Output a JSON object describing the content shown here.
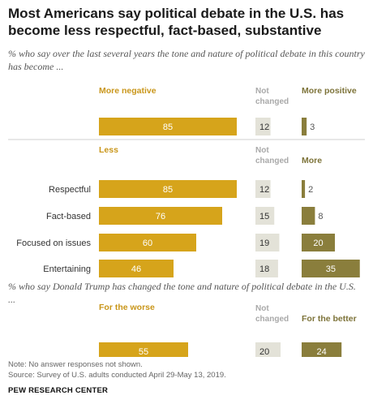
{
  "title": "Most Americans say political debate in the U.S. has become less respectful, fact-based, substantive",
  "subtitle1": "% who say over the last several years the tone and nature of political debate in this country has become ...",
  "subtitle2": "% who say Donald Trump has changed the tone and nature of political debate in the U.S. ...",
  "note": "Note: No answer responses not shown.",
  "source": "Source: Survey of U.S. adults conducted April 29-May 13, 2019.",
  "footer": "PEW RESEARCH CENTER",
  "colors": {
    "negative": "#d6a41b",
    "neutral": "#e3e2d8",
    "positive": "#8a7e3c",
    "label_negative": "#c9961a",
    "label_neutral": "#a9a9a9",
    "label_positive": "#7d7339"
  },
  "chart_data": [
    {
      "type": "bar",
      "orientation": "horizontal-diverging",
      "column_headers": [
        "More negative",
        "Not changed",
        "More positive"
      ],
      "categories": [
        ""
      ],
      "series": [
        {
          "name": "More negative",
          "values": [
            85
          ]
        },
        {
          "name": "Not changed",
          "values": [
            12
          ]
        },
        {
          "name": "More positive",
          "values": [
            3
          ]
        }
      ]
    },
    {
      "type": "bar",
      "orientation": "horizontal-diverging",
      "column_headers": [
        "Less",
        "Not changed",
        "More"
      ],
      "categories": [
        "Respectful",
        "Fact-based",
        "Focused on issues",
        "Entertaining"
      ],
      "series": [
        {
          "name": "Less",
          "values": [
            85,
            76,
            60,
            46
          ]
        },
        {
          "name": "Not changed",
          "values": [
            12,
            15,
            19,
            18
          ]
        },
        {
          "name": "More",
          "values": [
            2,
            8,
            20,
            35
          ]
        }
      ]
    },
    {
      "type": "bar",
      "orientation": "horizontal-diverging",
      "column_headers": [
        "For the worse",
        "Not changed",
        "For the better"
      ],
      "categories": [
        ""
      ],
      "series": [
        {
          "name": "For the worse",
          "values": [
            55
          ]
        },
        {
          "name": "Not changed",
          "values": [
            20
          ]
        },
        {
          "name": "For the better",
          "values": [
            24
          ]
        }
      ]
    }
  ]
}
